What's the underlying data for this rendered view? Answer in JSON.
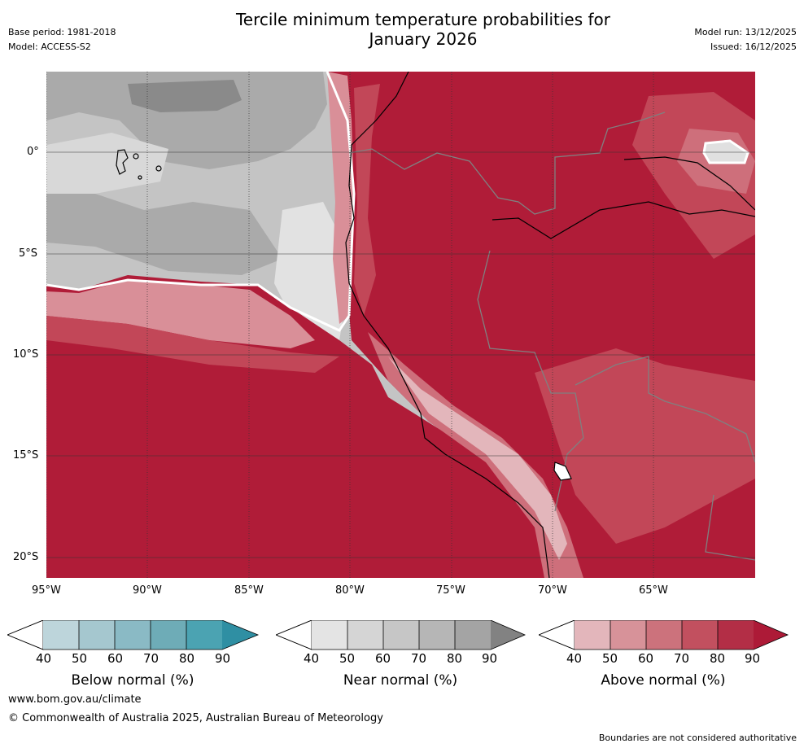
{
  "header": {
    "title_line1": "Tercile minimum temperature probabilities for",
    "title_line2": "January 2026",
    "base_period": "Base period: 1981-2018",
    "model": "Model: ACCESS-S2",
    "model_run": "Model run: 13/12/2025",
    "issued": "Issued: 16/12/2025"
  },
  "map": {
    "lat_labels": [
      "0°",
      "5°S",
      "10°S",
      "15°S",
      "20°S"
    ],
    "lon_labels": [
      "95°W",
      "90°W",
      "85°W",
      "80°W",
      "75°W",
      "70°W",
      "65°W"
    ],
    "colors": {
      "ocean_near_70": "#c4c4c4",
      "ocean_near_80": "#aaaaaa",
      "ocean_near_90": "#8a8a8a",
      "ocean_near_50": "#d8d8d8",
      "above_90": "#b01c38",
      "above_80": "#c24758",
      "above_70": "#ce6f7b",
      "above_60": "#d98f98",
      "above_50": "#e3b6bb"
    }
  },
  "colorbars": [
    {
      "title": "Below normal (%)",
      "ticks": [
        "40",
        "50",
        "60",
        "70",
        "80",
        "90"
      ],
      "colors": [
        "#ffffff",
        "#bdd5db",
        "#a5c7cf",
        "#8abac5",
        "#6eacb7",
        "#4ba3b2",
        "#2f8fa3"
      ]
    },
    {
      "title": "Near normal (%)",
      "ticks": [
        "40",
        "50",
        "60",
        "70",
        "80",
        "90"
      ],
      "colors": [
        "#ffffff",
        "#e4e4e4",
        "#d5d5d5",
        "#c6c6c6",
        "#b6b6b6",
        "#a4a4a4",
        "#828282"
      ]
    },
    {
      "title": "Above normal (%)",
      "ticks": [
        "40",
        "50",
        "60",
        "70",
        "80",
        "90"
      ],
      "colors": [
        "#ffffff",
        "#e3b6bb",
        "#d79299",
        "#cc727c",
        "#c2505f",
        "#b32e46",
        "#ad1a37"
      ]
    }
  ],
  "footer": {
    "url": "www.bom.gov.au/climate",
    "copyright": "© Commonwealth of Australia 2025, Australian Bureau of Meteorology",
    "disclaimer": "Boundaries are not considered authoritative"
  }
}
